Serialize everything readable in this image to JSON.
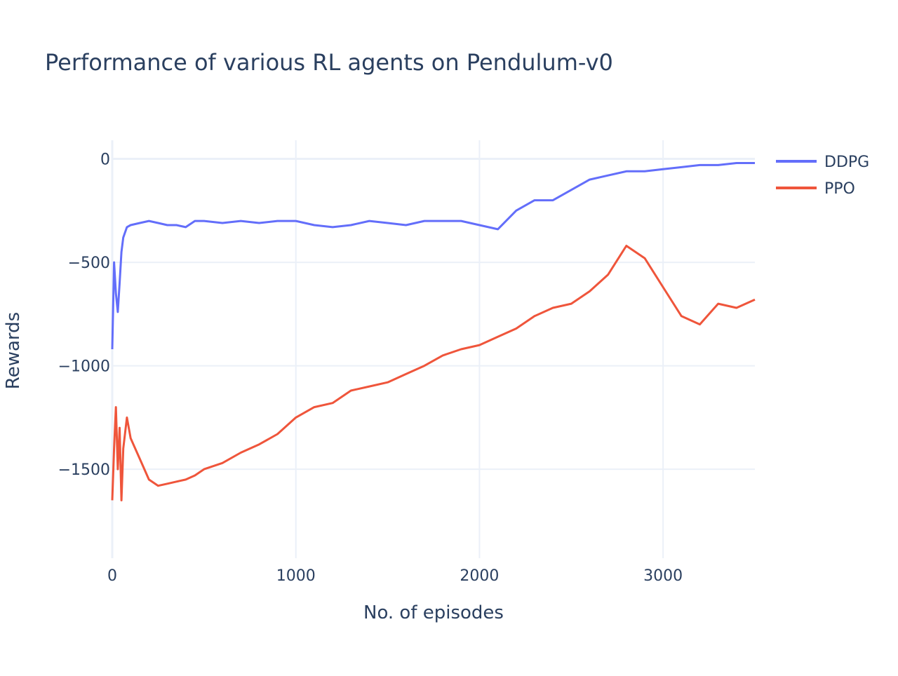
{
  "chart_data": {
    "type": "line",
    "title": "Performance of various RL agents on Pendulum-v0",
    "xlabel": "No. of episodes",
    "ylabel": "Rewards",
    "xlim": [
      0,
      3500
    ],
    "ylim": [
      -1930,
      90
    ],
    "xticks": [
      0,
      1000,
      2000,
      3000
    ],
    "xtick_labels": [
      "0",
      "1000",
      "2000",
      "3000"
    ],
    "yticks": [
      0,
      -500,
      -1000,
      -1500
    ],
    "ytick_labels": [
      "0",
      "−500",
      "−1000",
      "−1500"
    ],
    "grid": true,
    "legend_position": "top-right",
    "series": [
      {
        "name": "DDPG",
        "color": "#636efa",
        "x": [
          0,
          10,
          20,
          30,
          40,
          50,
          60,
          80,
          100,
          150,
          200,
          250,
          300,
          350,
          400,
          450,
          500,
          600,
          700,
          800,
          900,
          1000,
          1100,
          1200,
          1300,
          1400,
          1500,
          1600,
          1700,
          1800,
          1900,
          2000,
          2100,
          2200,
          2300,
          2400,
          2500,
          2600,
          2700,
          2800,
          2900,
          3000,
          3100,
          3200,
          3300,
          3400,
          3500
        ],
        "values": [
          -920,
          -500,
          -650,
          -740,
          -600,
          -450,
          -380,
          -330,
          -320,
          -310,
          -300,
          -310,
          -320,
          -320,
          -330,
          -300,
          -300,
          -310,
          -300,
          -310,
          -300,
          -300,
          -320,
          -330,
          -320,
          -300,
          -310,
          -320,
          -300,
          -300,
          -300,
          -320,
          -340,
          -250,
          -200,
          -200,
          -150,
          -100,
          -80,
          -60,
          -60,
          -50,
          -40,
          -30,
          -30,
          -20,
          -20
        ]
      },
      {
        "name": "PPO",
        "color": "#ef553b",
        "x": [
          0,
          10,
          20,
          30,
          40,
          50,
          60,
          80,
          100,
          150,
          200,
          250,
          300,
          350,
          400,
          450,
          500,
          600,
          700,
          800,
          900,
          1000,
          1100,
          1200,
          1300,
          1400,
          1500,
          1600,
          1700,
          1800,
          1900,
          2000,
          2100,
          2200,
          2300,
          2400,
          2500,
          2600,
          2700,
          2800,
          2900,
          3000,
          3100,
          3200,
          3300,
          3400,
          3500
        ],
        "values": [
          -1650,
          -1400,
          -1200,
          -1500,
          -1300,
          -1650,
          -1400,
          -1250,
          -1350,
          -1450,
          -1550,
          -1580,
          -1570,
          -1560,
          -1550,
          -1530,
          -1500,
          -1470,
          -1420,
          -1380,
          -1330,
          -1250,
          -1200,
          -1180,
          -1120,
          -1100,
          -1080,
          -1040,
          -1000,
          -950,
          -920,
          -900,
          -860,
          -820,
          -760,
          -720,
          -700,
          -640,
          -560,
          -420,
          -480,
          -620,
          -760,
          -800,
          -700,
          -720,
          -680
        ]
      }
    ]
  }
}
